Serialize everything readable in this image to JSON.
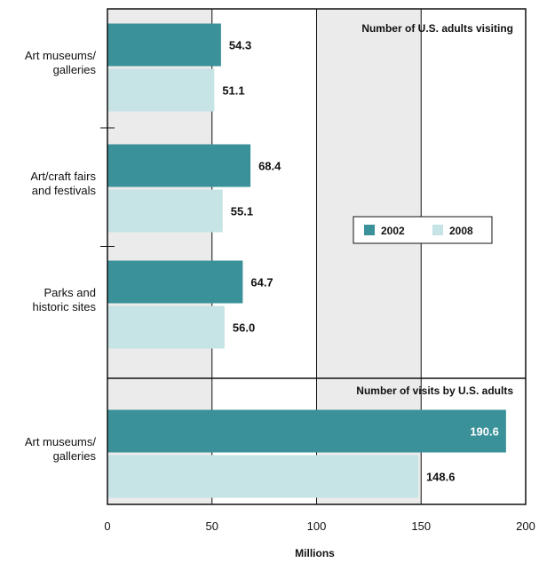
{
  "chart_data": {
    "type": "bar",
    "orientation": "horizontal",
    "xlabel": "Millions",
    "xlim": [
      0,
      200
    ],
    "x_ticks": [
      "0",
      "50",
      "100",
      "150",
      "200"
    ],
    "grid": true,
    "legend": {
      "placement": "right-middle",
      "entries": [
        {
          "name": "2002",
          "color": "#3a9199"
        },
        {
          "name": "2008",
          "color": "#c6e3e5"
        }
      ]
    },
    "colors": {
      "band_shade": "#ebebeb",
      "series_2002": "#3a9199",
      "series_2008": "#c6e3e5",
      "axis": "#111111"
    },
    "panels": [
      {
        "title": "Number of U.S. adults visiting",
        "categories": [
          [
            "Art museums/",
            "galleries"
          ],
          [
            "Art/craft fairs",
            "and festivals"
          ],
          [
            "Parks and",
            "historic sites"
          ]
        ],
        "series": [
          {
            "name": "2002",
            "values": [
              54.3,
              68.4,
              64.7
            ],
            "labels": [
              "54.3",
              "68.4",
              "64.7"
            ]
          },
          {
            "name": "2008",
            "values": [
              51.1,
              55.1,
              56.0
            ],
            "labels": [
              "51.1",
              "55.1",
              "56.0"
            ]
          }
        ]
      },
      {
        "title": "Number of visits by U.S. adults",
        "categories": [
          [
            "Art museums/",
            "galleries"
          ]
        ],
        "series": [
          {
            "name": "2002",
            "values": [
              190.6
            ],
            "labels": [
              "190.6"
            ]
          },
          {
            "name": "2008",
            "values": [
              148.6
            ],
            "labels": [
              "148.6"
            ]
          }
        ]
      }
    ]
  }
}
